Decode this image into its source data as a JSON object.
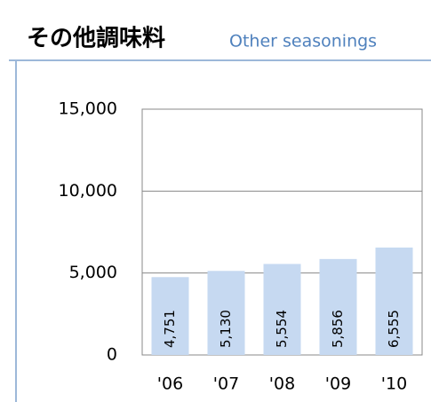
{
  "chart_data": {
    "type": "bar",
    "title": "その他調味料",
    "subtitle": "Other seasonings",
    "categories": [
      "'06",
      "'07",
      "'08",
      "'09",
      "'10"
    ],
    "values": [
      4751,
      5130,
      5554,
      5856,
      6555
    ],
    "value_labels": [
      "4,751",
      "5,130",
      "5,554",
      "5,856",
      "6,555"
    ],
    "color": "#c6d9f1",
    "ylim": [
      0,
      15000
    ],
    "yticks": [
      0,
      {
        "value": 5000,
        "label": "5,000"
      },
      {
        "value": 10000,
        "label": "10,000"
      },
      {
        "value": 15000,
        "label": "15,000"
      }
    ],
    "grid": true
  }
}
